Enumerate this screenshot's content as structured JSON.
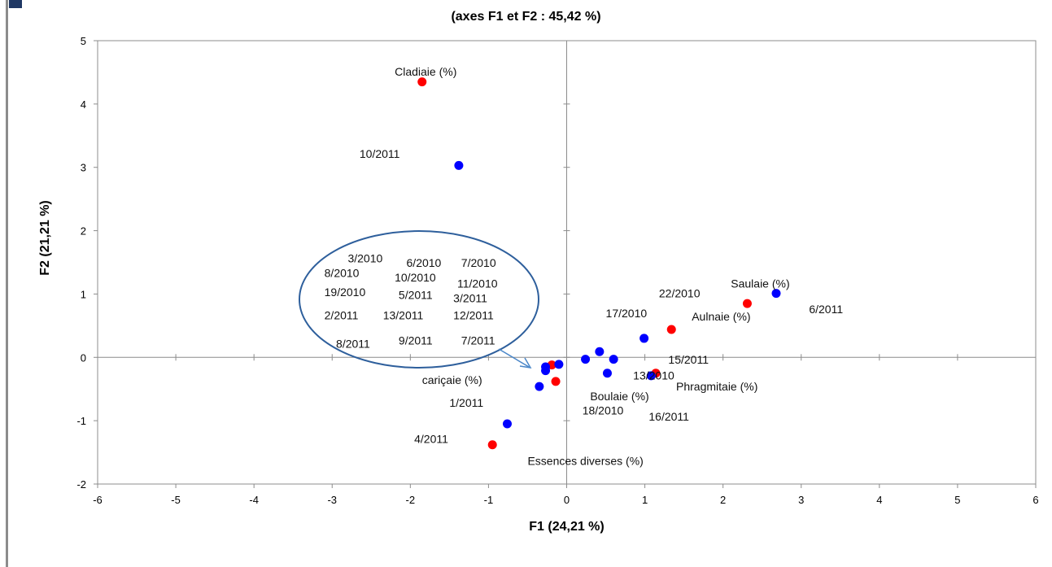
{
  "chart_data": {
    "type": "scatter",
    "title": "(axes F1 et F2 : 45,42 %)",
    "xlabel": "F1 (24,21 %)",
    "ylabel": "F2 (21,21 %)",
    "xlim": [
      -6,
      6
    ],
    "ylim": [
      -2,
      5
    ],
    "x_ticks": [
      "-6",
      "-5",
      "-4",
      "-3",
      "-2",
      "-1",
      "0",
      "1",
      "2",
      "3",
      "4",
      "5",
      "6"
    ],
    "y_ticks": [
      "-2",
      "-1",
      "0",
      "1",
      "2",
      "3",
      "4",
      "5"
    ],
    "grid": false,
    "colors": {
      "variables": "#ff0000",
      "observations": "#0000ff",
      "ellipse": "#2e5f9c",
      "arrow": "#4a86c8"
    },
    "series": [
      {
        "points": [
          {
            "x": -1.85,
            "y": 4.35
          },
          {
            "x": 2.31,
            "y": 0.85
          },
          {
            "x": 1.34,
            "y": 0.44
          },
          {
            "x": -0.19,
            "y": -0.12
          },
          {
            "x": -0.14,
            "y": -0.38
          },
          {
            "x": 1.14,
            "y": -0.25
          },
          {
            "x": -0.95,
            "y": -1.38
          }
        ]
      },
      {
        "points": [
          {
            "x": -1.38,
            "y": 3.03
          },
          {
            "x": 2.68,
            "y": 1.01
          },
          {
            "x": 0.99,
            "y": 0.3
          },
          {
            "x": 0.42,
            "y": 0.09
          },
          {
            "x": 0.6,
            "y": -0.03
          },
          {
            "x": 0.24,
            "y": -0.03
          },
          {
            "x": 0.52,
            "y": -0.25
          },
          {
            "x": 1.08,
            "y": -0.29
          },
          {
            "x": -0.1,
            "y": -0.11
          },
          {
            "x": -0.27,
            "y": -0.15
          },
          {
            "x": -0.27,
            "y": -0.21
          },
          {
            "x": -0.35,
            "y": -0.46
          },
          {
            "x": -0.76,
            "y": -1.05
          }
        ]
      }
    ],
    "annotations": [
      {
        "text": "Cladiaie (%)",
        "x": -2.2,
        "y": 4.45
      },
      {
        "text": "10/2011",
        "x": -2.65,
        "y": 3.15
      },
      {
        "text": "Saulaie (%)",
        "x": 2.1,
        "y": 1.1
      },
      {
        "text": "22/2010",
        "x": 1.18,
        "y": 0.95
      },
      {
        "text": "6/2011",
        "x": 3.1,
        "y": 0.7
      },
      {
        "text": "17/2010",
        "x": 0.5,
        "y": 0.63
      },
      {
        "text": "Aulnaie (%)",
        "x": 1.6,
        "y": 0.58
      },
      {
        "text": "15/2011",
        "x": 1.3,
        "y": -0.1
      },
      {
        "text": "13/2010",
        "x": 0.85,
        "y": -0.35
      },
      {
        "text": "Phragmitaie (%)",
        "x": 1.4,
        "y": -0.52
      },
      {
        "text": "cariçaie (%)",
        "x": -1.85,
        "y": -0.42
      },
      {
        "text": "Boulaie (%)",
        "x": 0.3,
        "y": -0.68
      },
      {
        "text": "1/2011",
        "x": -1.5,
        "y": -0.78
      },
      {
        "text": "18/2010",
        "x": 0.2,
        "y": -0.9
      },
      {
        "text": "16/2011",
        "x": 1.05,
        "y": -1.0
      },
      {
        "text": "4/2011",
        "x": -1.95,
        "y": -1.35
      },
      {
        "text": "Essences diverses (%)",
        "x": -0.5,
        "y": -1.7
      },
      {
        "text": "3/2010",
        "x": -2.8,
        "y": 1.5
      },
      {
        "text": "6/2010",
        "x": -2.05,
        "y": 1.43
      },
      {
        "text": "7/2010",
        "x": -1.35,
        "y": 1.43
      },
      {
        "text": "8/2010",
        "x": -3.1,
        "y": 1.27
      },
      {
        "text": "10/2010",
        "x": -2.2,
        "y": 1.2
      },
      {
        "text": "11/2010",
        "x": -1.4,
        "y": 1.1
      },
      {
        "text": "19/2010",
        "x": -3.1,
        "y": 0.97
      },
      {
        "text": "5/2011",
        "x": -2.15,
        "y": 0.92
      },
      {
        "text": "3/2011",
        "x": -1.45,
        "y": 0.87
      },
      {
        "text": "2/2011",
        "x": -3.1,
        "y": 0.6
      },
      {
        "text": "13/2011",
        "x": -2.35,
        "y": 0.6
      },
      {
        "text": "12/2011",
        "x": -1.45,
        "y": 0.6
      },
      {
        "text": "8/2011",
        "x": -2.95,
        "y": 0.15
      },
      {
        "text": "9/2011",
        "x": -2.15,
        "y": 0.2
      },
      {
        "text": "7/2011",
        "x": -1.35,
        "y": 0.2
      }
    ]
  }
}
